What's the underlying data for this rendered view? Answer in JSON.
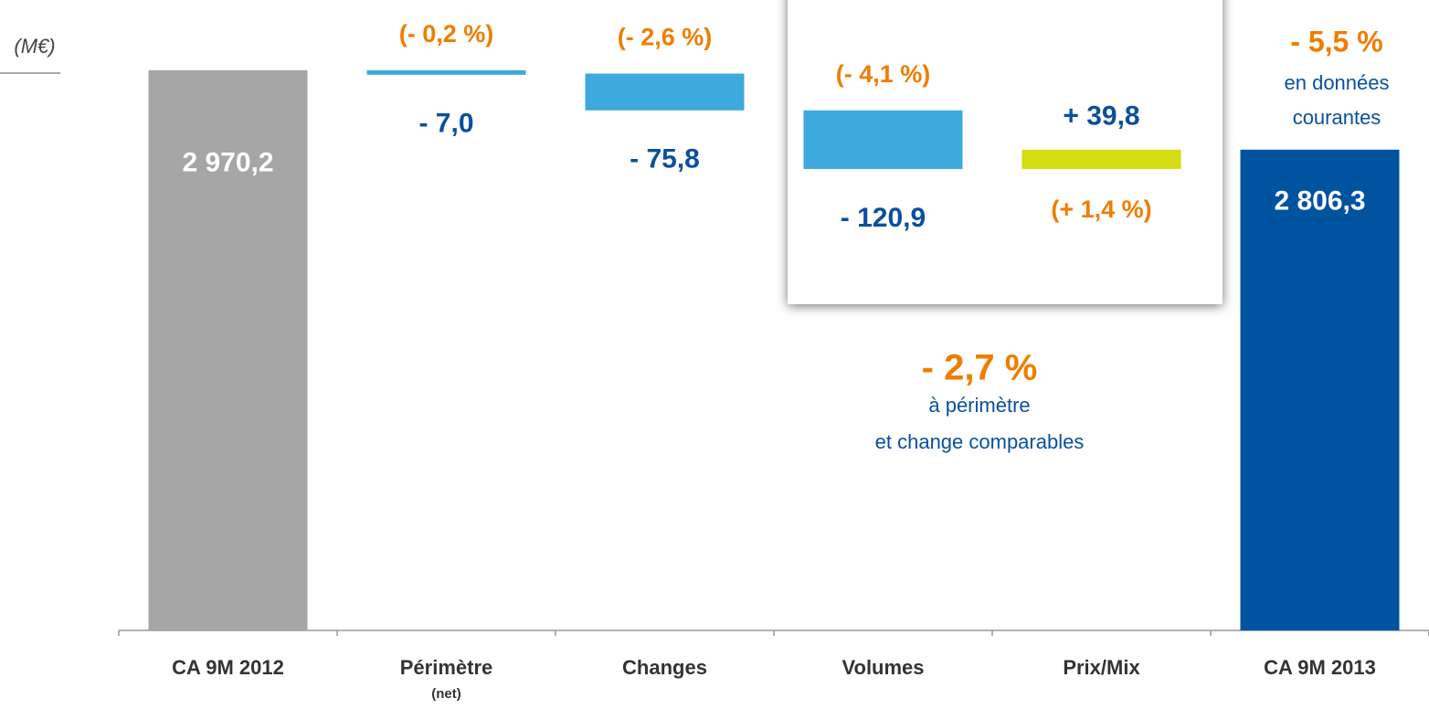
{
  "chart_data": {
    "type": "waterfall",
    "unit_label": "(M€)",
    "categories": [
      "CA 9M 2012",
      "Périmètre",
      "Changes",
      "Volumes",
      "Prix/Mix",
      "CA 9M 2013"
    ],
    "category_subtitles": [
      null,
      "(net)",
      null,
      null,
      null,
      null
    ],
    "values": [
      2970.2,
      -7.0,
      -75.8,
      -120.9,
      39.8,
      2806.3
    ],
    "value_labels": [
      "2 970,2",
      "- 7,0",
      "- 75,8",
      "- 120,9",
      "+ 39,8",
      "2 806,3"
    ],
    "totals": [
      true,
      false,
      false,
      false,
      false,
      true
    ],
    "colors": [
      "#a6a6a6",
      "#3da9dc",
      "#3da9dc",
      "#3da9dc",
      "#d4db12",
      "#00539f"
    ],
    "percent_labels": [
      null,
      "(- 0,2 %)",
      "(- 2,6 %)",
      "(- 4,1 %)",
      "(+ 1,4 %)",
      null
    ],
    "ylim": [
      1815,
      3000
    ],
    "annotations": {
      "total_change": "- 5,5 %",
      "total_change_note": [
        "en données",
        "courantes"
      ],
      "organic_change": "- 2,7 %",
      "organic_change_note": [
        "à périmètre",
        "et change comparables"
      ]
    }
  }
}
